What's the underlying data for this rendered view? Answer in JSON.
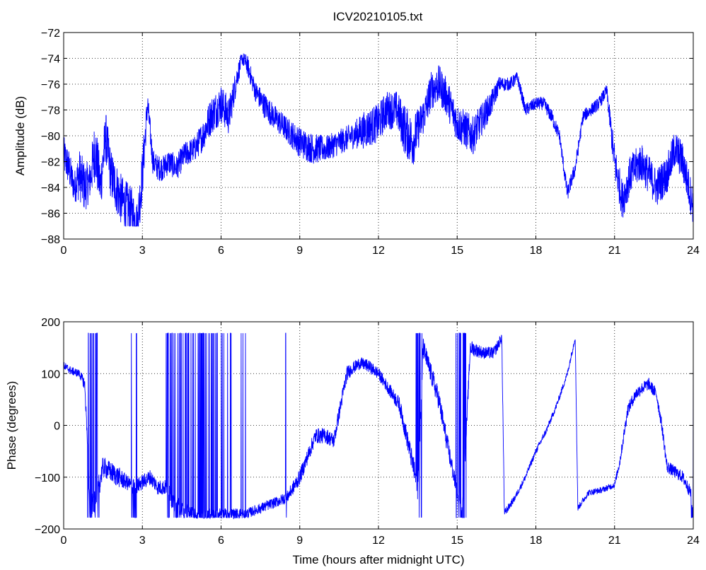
{
  "title": "ICV20210105.txt",
  "colors": {
    "series": "#0000ff",
    "axes": "#000000",
    "grid": "#000000"
  },
  "chart_data": [
    {
      "type": "line",
      "ylabel": "Amplitude (dB)",
      "xlabel": "",
      "xlim": [
        0,
        24
      ],
      "ylim": [
        -88,
        -72
      ],
      "xticks": [
        0,
        3,
        6,
        9,
        12,
        15,
        18,
        21,
        24
      ],
      "yticks": [
        -88,
        -86,
        -84,
        -82,
        -80,
        -78,
        -76,
        -74,
        -72
      ],
      "grid": true,
      "series": [
        {
          "x": [
            0,
            0.2,
            0.4,
            0.6,
            0.8,
            1.0,
            1.2,
            1.4,
            1.6,
            1.8,
            2.0,
            2.2,
            2.4,
            2.6,
            2.8,
            3.0,
            3.2,
            3.4,
            3.6,
            3.8,
            4.0,
            4.3,
            4.6,
            5.0,
            5.3,
            5.6,
            6.0,
            6.3,
            6.6,
            6.8,
            7.0,
            7.3,
            7.6,
            8.0,
            8.5,
            9.0,
            9.5,
            10.0,
            10.5,
            11.0,
            11.5,
            12.0,
            12.3,
            12.7,
            13.0,
            13.3,
            13.6,
            13.8,
            14.0,
            14.3,
            14.6,
            15.0,
            15.3,
            15.6,
            16.0,
            16.3,
            16.6,
            17.0,
            17.3,
            17.6,
            18.0,
            18.3,
            18.6,
            18.9,
            19.2,
            19.5,
            19.8,
            20.1,
            20.4,
            20.7,
            21.0,
            21.3,
            21.6,
            22.0,
            22.3,
            22.6,
            23.0,
            23.3,
            23.6,
            24.0
          ],
          "values": [
            -81.5,
            -82.5,
            -84,
            -83,
            -84,
            -83.5,
            -81,
            -84,
            -80,
            -83,
            -84,
            -85,
            -85.5,
            -86,
            -87,
            -83,
            -77.5,
            -82,
            -82.5,
            -82.5,
            -82,
            -82.5,
            -81.5,
            -81,
            -80,
            -78.5,
            -77.5,
            -78.5,
            -75.5,
            -74,
            -74.5,
            -76.5,
            -77.5,
            -78.5,
            -79.5,
            -80.5,
            -81,
            -81,
            -80.5,
            -80,
            -79.5,
            -79,
            -78,
            -78,
            -79.5,
            -80.5,
            -79,
            -78,
            -76.5,
            -76,
            -77,
            -79,
            -79.5,
            -80,
            -78.5,
            -77.5,
            -76,
            -76,
            -75.5,
            -78,
            -77.5,
            -77.5,
            -78.5,
            -80,
            -84.5,
            -82.5,
            -78.5,
            -78,
            -77.5,
            -76.5,
            -82,
            -85,
            -83,
            -82,
            -83,
            -84,
            -83,
            -81,
            -82,
            -85.5
          ],
          "noise": [
            1.5,
            1.5,
            1.2,
            2.0,
            2.0,
            1.5,
            2.5,
            2.0,
            2.0,
            2.0,
            2.0,
            2.0,
            2.0,
            2.0,
            2.0,
            2.0,
            1.0,
            1.0,
            1.0,
            1.0,
            1.0,
            1.0,
            1.0,
            1.0,
            1.2,
            1.5,
            1.5,
            1.5,
            1.0,
            0.5,
            0.8,
            0.8,
            1.0,
            1.0,
            1.0,
            1.2,
            1.2,
            1.0,
            1.0,
            1.0,
            1.5,
            1.5,
            1.5,
            1.5,
            2.0,
            2.0,
            1.5,
            1.5,
            1.5,
            1.5,
            1.5,
            1.5,
            1.5,
            1.5,
            1.2,
            1.0,
            0.6,
            0.5,
            0.5,
            0.5,
            0.5,
            0.5,
            0.6,
            0.5,
            0.6,
            0.6,
            0.5,
            0.5,
            0.5,
            0.5,
            1.5,
            1.5,
            1.5,
            1.5,
            1.5,
            1.5,
            1.5,
            1.5,
            1.5,
            1.5
          ]
        }
      ]
    },
    {
      "type": "line",
      "ylabel": "Phase (degrees)",
      "xlabel": "Time (hours after midnight UTC)",
      "xlim": [
        0,
        24
      ],
      "ylim": [
        -200,
        200
      ],
      "xticks": [
        0,
        3,
        6,
        9,
        12,
        15,
        18,
        21,
        24
      ],
      "yticks": [
        -200,
        -100,
        0,
        100,
        200
      ],
      "grid": true,
      "series": [
        {
          "x": [
            0,
            0.3,
            0.6,
            0.8,
            0.9,
            1.0,
            1.2,
            1.5,
            1.8,
            2.1,
            2.4,
            2.7,
            3.0,
            3.3,
            3.6,
            3.9,
            4.2,
            4.5,
            5.0,
            5.5,
            6.0,
            6.3,
            6.6,
            6.9,
            7.0,
            7.5,
            8.0,
            8.5,
            9.0,
            9.3,
            9.6,
            10.0,
            10.3,
            10.6,
            10.8,
            11.0,
            11.3,
            11.6,
            12.0,
            12.4,
            12.8,
            13.2,
            13.5,
            13.7,
            14.0,
            14.3,
            14.6,
            15.0,
            15.2,
            15.5,
            16.0,
            16.4,
            16.7,
            16.8,
            17.2,
            17.6,
            18.0,
            18.4,
            18.8,
            19.2,
            19.5,
            19.6,
            20.0,
            20.5,
            21.0,
            21.2,
            21.5,
            21.8,
            22.0,
            22.3,
            22.6,
            22.8,
            23.0,
            23.3,
            23.6,
            23.9,
            24.0
          ],
          "values": [
            115,
            105,
            100,
            80,
            -20,
            -160,
            -150,
            -80,
            -90,
            -100,
            -110,
            -120,
            -110,
            -100,
            -120,
            -120,
            -150,
            -160,
            -170,
            -170,
            -170,
            -170,
            -170,
            -170,
            -170,
            -160,
            -150,
            -140,
            -100,
            -60,
            -20,
            -20,
            -30,
            50,
            100,
            110,
            120,
            115,
            100,
            70,
            40,
            -50,
            -120,
            150,
            100,
            50,
            -30,
            -130,
            -170,
            150,
            140,
            140,
            170,
            -170,
            -140,
            -100,
            -50,
            -10,
            40,
            100,
            170,
            -160,
            -130,
            -125,
            -115,
            -70,
            30,
            60,
            70,
            80,
            60,
            0,
            -80,
            -90,
            -100,
            -130,
            -170
          ],
          "noise": [
            8,
            8,
            8,
            12,
            15,
            25,
            25,
            20,
            20,
            20,
            15,
            15,
            15,
            15,
            15,
            15,
            20,
            15,
            10,
            10,
            10,
            10,
            10,
            10,
            10,
            10,
            10,
            12,
            15,
            15,
            15,
            15,
            15,
            15,
            15,
            12,
            12,
            12,
            12,
            12,
            15,
            20,
            25,
            20,
            20,
            20,
            20,
            15,
            15,
            15,
            12,
            12,
            10,
            8,
            6,
            6,
            6,
            6,
            6,
            6,
            6,
            6,
            6,
            6,
            6,
            10,
            12,
            12,
            12,
            12,
            12,
            12,
            12,
            12,
            12,
            12,
            12
          ],
          "wraps": [
            [
              0.9,
              1.35
            ],
            [
              2.55,
              2.8
            ],
            [
              3.9,
              6.4
            ],
            [
              6.75,
              6.95
            ],
            [
              8.45,
              8.5
            ],
            [
              13.4,
              13.7
            ],
            [
              14.95,
              15.35
            ],
            [
              23.9,
              24
            ]
          ]
        }
      ]
    }
  ]
}
